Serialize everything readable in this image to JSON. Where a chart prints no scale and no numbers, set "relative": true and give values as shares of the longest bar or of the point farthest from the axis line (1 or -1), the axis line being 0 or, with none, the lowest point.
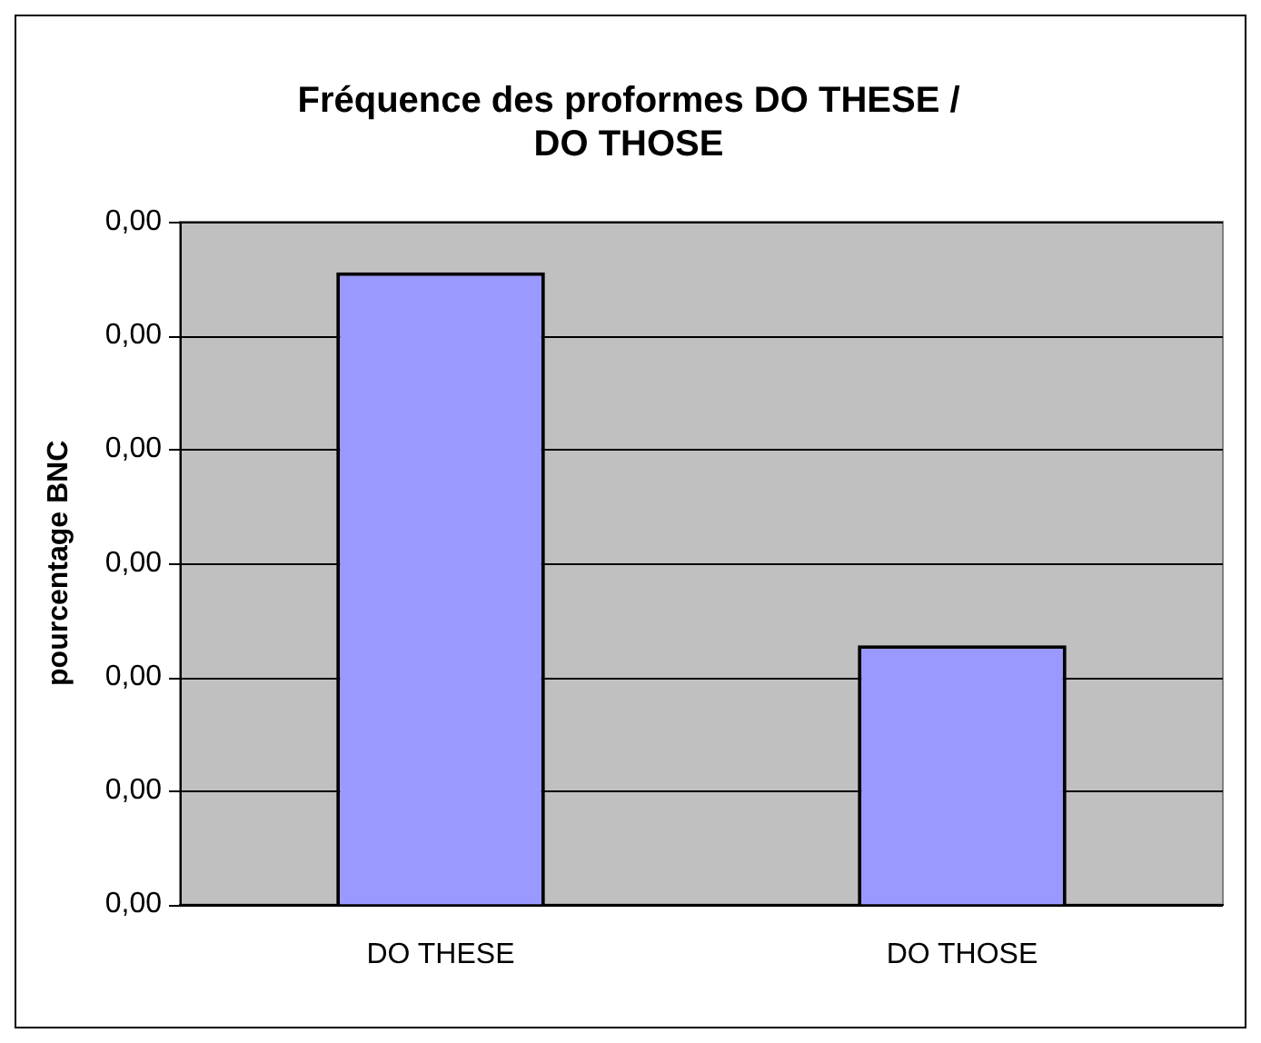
{
  "chart_data": {
    "type": "bar",
    "title": "Fréquence des proformes DO THESE / DO THOSE",
    "ylabel": "pourcentage BNC",
    "categories": [
      "DO THESE",
      "DO THOSE"
    ],
    "values": [
      1,
      0.41
    ],
    "color": "#9999ff",
    "relative": true,
    "annotations": [
      "0,00",
      "0,00",
      "0,00",
      "0,00",
      "0,00",
      "0,00",
      "0,00"
    ],
    "grid": "y",
    "legend": false
  }
}
